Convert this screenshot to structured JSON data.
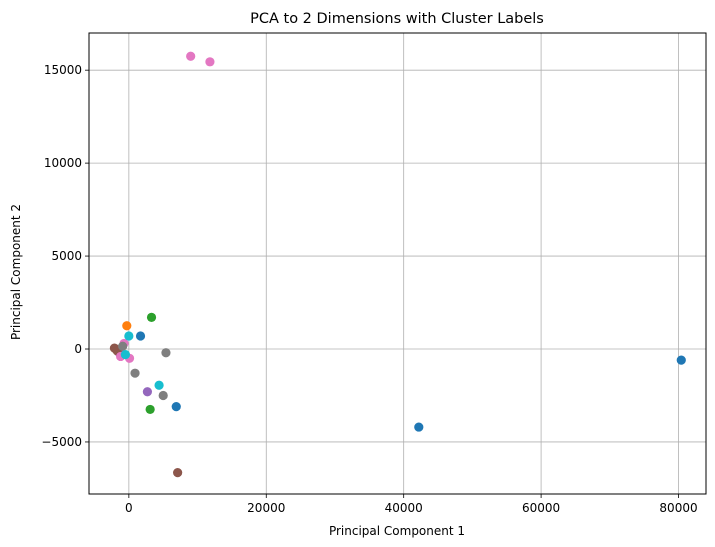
{
  "chart_data": {
    "type": "scatter",
    "title": "PCA to 2 Dimensions with Cluster Labels",
    "xlabel": "Principal Component 1",
    "ylabel": "Principal Component 2",
    "xlim": [
      -5800,
      84000
    ],
    "ylim": [
      -7800,
      17000
    ],
    "xticks": [
      0,
      20000,
      40000,
      60000,
      80000
    ],
    "xtick_labels": [
      "0",
      "20000",
      "40000",
      "60000",
      "80000"
    ],
    "yticks": [
      -5000,
      0,
      5000,
      10000,
      15000
    ],
    "ytick_labels": [
      "−5000",
      "0",
      "5000",
      "10000",
      "15000"
    ],
    "grid": true,
    "clusters": [
      {
        "color": "#1f77b4",
        "points": [
          [
            80400,
            -600
          ],
          [
            42200,
            -4200
          ],
          [
            6900,
            -3100
          ],
          [
            1700,
            700
          ]
        ]
      },
      {
        "color": "#ff7f0e",
        "points": [
          [
            -300,
            1250
          ]
        ]
      },
      {
        "color": "#2ca02c",
        "points": [
          [
            3300,
            1700
          ],
          [
            3100,
            -3250
          ]
        ]
      },
      {
        "color": "#9467bd",
        "points": [
          [
            2700,
            -2300
          ],
          [
            -1400,
            -200
          ]
        ]
      },
      {
        "color": "#8c564b",
        "points": [
          [
            7100,
            -6650
          ],
          [
            -1900,
            0
          ],
          [
            -2100,
            50
          ],
          [
            -1700,
            -100
          ]
        ]
      },
      {
        "color": "#e377c2",
        "points": [
          [
            9000,
            15750
          ],
          [
            11800,
            15450
          ],
          [
            100,
            -500
          ],
          [
            -700,
            300
          ],
          [
            -1200,
            -400
          ]
        ]
      },
      {
        "color": "#7f7f7f",
        "points": [
          [
            5400,
            -200
          ],
          [
            5000,
            -2500
          ],
          [
            900,
            -1300
          ],
          [
            -900,
            150
          ]
        ]
      },
      {
        "color": "#17becf",
        "points": [
          [
            4400,
            -1950
          ],
          [
            0,
            700
          ],
          [
            -500,
            -300
          ]
        ]
      }
    ]
  }
}
